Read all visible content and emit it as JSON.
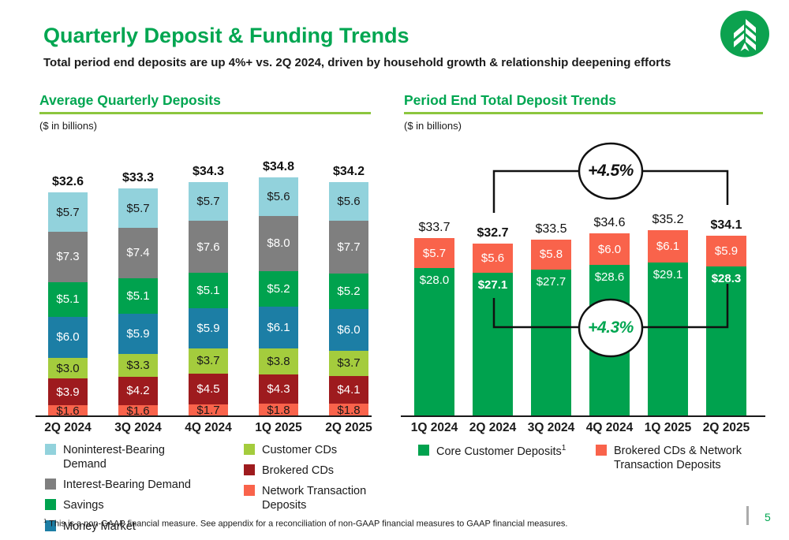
{
  "page": {
    "title": "Quarterly Deposit & Funding Trends",
    "subtitle": "Total period end deposits are up 4%+ vs. 2Q 2024, driven by household growth & relationship deepening efforts",
    "footnote_marker": "1",
    "footnote": " This is a non-GAAP financial measure. See appendix for a reconciliation of non-GAAP financial measures to GAAP financial measures.",
    "page_number": "5",
    "logo": "evergreen-tree-logo"
  },
  "colors": {
    "brand_green": "#00A651",
    "header_underline": "#8CC63E",
    "axis": "#1A1A1A"
  },
  "chart_data": [
    {
      "id": "avg-quarterly-deposits",
      "type": "bar",
      "stacked": true,
      "title": "Average Quarterly Deposits",
      "units": "($ in billions)",
      "categories": [
        "2Q 2024",
        "3Q 2024",
        "4Q 2024",
        "1Q 2025",
        "2Q 2025"
      ],
      "totals": [
        32.6,
        33.3,
        34.3,
        34.8,
        34.2
      ],
      "totals_bold": true,
      "ylim": [
        0,
        34.8
      ],
      "grid": false,
      "series_bottom_to_top": [
        {
          "name": "Network Transaction Deposits",
          "color": "#F9634B",
          "label_color": "#1A1A1A",
          "values": [
            1.6,
            1.6,
            1.7,
            1.8,
            1.8
          ]
        },
        {
          "name": "Brokered CDs",
          "color": "#9E1B1E",
          "label_color": "#FFFFFF",
          "values": [
            3.9,
            4.2,
            4.5,
            4.3,
            4.1
          ]
        },
        {
          "name": "Customer CDs",
          "color": "#A4CC3D",
          "label_color": "#1A1A1A",
          "values": [
            3.0,
            3.3,
            3.7,
            3.8,
            3.7
          ]
        },
        {
          "name": "Money Market",
          "color": "#1C7EA5",
          "label_color": "#FFFFFF",
          "values": [
            6.0,
            5.9,
            5.9,
            6.1,
            6.0
          ]
        },
        {
          "name": "Savings",
          "color": "#00A24E",
          "label_color": "#FFFFFF",
          "values": [
            5.1,
            5.1,
            5.1,
            5.2,
            5.2
          ]
        },
        {
          "name": "Interest-Bearing Demand",
          "color": "#7F7F7F",
          "label_color": "#FFFFFF",
          "values": [
            7.3,
            7.4,
            7.6,
            8.0,
            7.7
          ]
        },
        {
          "name": "Noninterest-Bearing Demand",
          "color": "#92D2DC",
          "label_color": "#1A1A1A",
          "values": [
            5.7,
            5.7,
            5.7,
            5.6,
            5.6
          ]
        }
      ],
      "legend": [
        {
          "label": "Noninterest-Bearing Demand",
          "color": "#92D2DC"
        },
        {
          "label": "Interest-Bearing Demand",
          "color": "#7F7F7F"
        },
        {
          "label": "Savings",
          "color": "#00A24E"
        },
        {
          "label": "Money Market",
          "color": "#1C7EA5"
        },
        {
          "label": "Customer CDs",
          "color": "#A4CC3D"
        },
        {
          "label": "Brokered CDs",
          "color": "#9E1B1E"
        },
        {
          "label": "Network Transaction Deposits",
          "color": "#F9634B"
        }
      ]
    },
    {
      "id": "period-end-deposits",
      "type": "bar",
      "stacked": true,
      "title": "Period End Total Deposit Trends",
      "units": "($ in billions)",
      "categories": [
        "1Q 2024",
        "2Q 2024",
        "3Q 2024",
        "4Q 2024",
        "1Q 2025",
        "2Q 2025"
      ],
      "totals": [
        33.7,
        32.7,
        33.5,
        34.6,
        35.2,
        34.1
      ],
      "totals_bold": false,
      "bold_categories": [
        "2Q 2024",
        "2Q 2025"
      ],
      "ylim": [
        0,
        35.2
      ],
      "grid": false,
      "series_bottom_to_top": [
        {
          "name": "Core Customer Deposits",
          "sup": "1",
          "color": "#00A24E",
          "label_color": "#FFFFFF",
          "label_align": "top",
          "bold_with_category": true,
          "values": [
            28.0,
            27.1,
            27.7,
            28.6,
            29.1,
            28.3
          ]
        },
        {
          "name": "Brokered CDs & Network Transaction Deposits",
          "color": "#F9634B",
          "label_color": "#FFFFFF",
          "values": [
            5.7,
            5.6,
            5.8,
            6.0,
            6.1,
            5.9
          ]
        }
      ],
      "legend": [
        {
          "label": "Core Customer Deposits",
          "sup": "1",
          "color": "#00A24E"
        },
        {
          "label": "Brokered CDs & Network Transaction Deposits",
          "color": "#F9634B"
        }
      ],
      "annotations": [
        {
          "text": "+4.5%",
          "text_color": "#1A1A1A",
          "compares": [
            "2Q 2024",
            "2Q 2025"
          ]
        },
        {
          "text": "+4.3%",
          "text_color": "#00A651",
          "compares": [
            "2Q 2024",
            "2Q 2025"
          ]
        }
      ]
    }
  ]
}
